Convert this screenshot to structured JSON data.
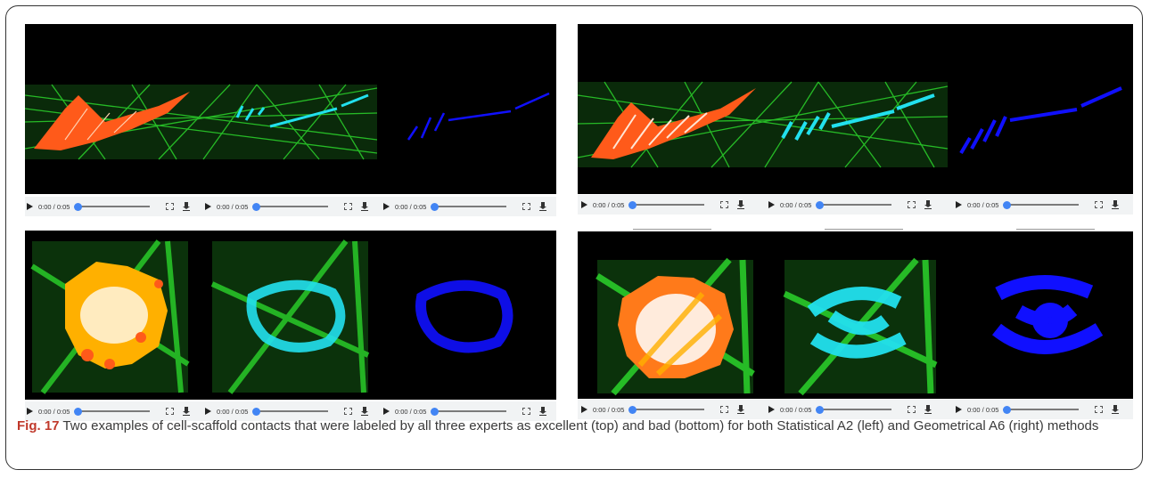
{
  "figure": {
    "label": "Fig. 17",
    "caption": "Two examples of cell-scaffold contacts that were labeled by all three experts as excellent (top) and bad (bottom) for both Statistical A2 (left) and Geometrical A6 (right) methods"
  },
  "players": [
    {
      "time": "0:00 / 0:05"
    },
    {
      "time": "0:00 / 0:05"
    },
    {
      "time": "0:00 / 0:05"
    },
    {
      "time": "0:00 / 0:05"
    },
    {
      "time": "0:00 / 0:05"
    },
    {
      "time": "0:00 / 0:05"
    },
    {
      "time": "0:00 / 0:05"
    },
    {
      "time": "0:00 / 0:05"
    },
    {
      "time": "0:00 / 0:05"
    },
    {
      "time": "0:00 / 0:05"
    },
    {
      "time": "0:00 / 0:05"
    },
    {
      "time": "0:00 / 0:05"
    }
  ],
  "colors": {
    "fiber": "#22cc22",
    "cell": "#ff5a1a",
    "contact_cyan": "#22e0ee",
    "contact_blue": "#1010ff",
    "caption_label": "#c0392b"
  },
  "icons": [
    "play-icon",
    "fullscreen-icon",
    "download-icon"
  ]
}
